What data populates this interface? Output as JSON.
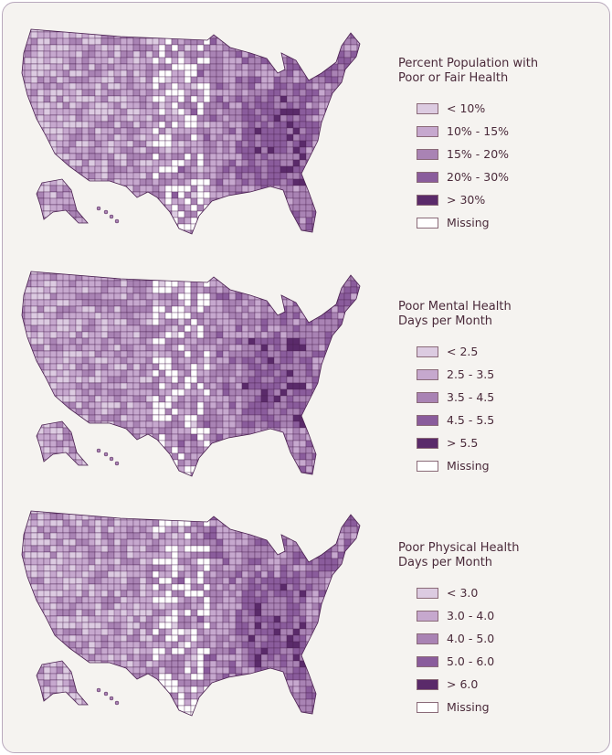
{
  "colors": [
    "#dccbe1",
    "#c6a8ce",
    "#a983b4",
    "#8a5c9c",
    "#5a2a6a",
    "#ffffff"
  ],
  "maps": [
    {
      "title": "Percent Population with Poor or Fair Health",
      "categories": [
        "< 10%",
        "10% - 15%",
        "15% - 20%",
        "20% - 30%",
        "> 30%",
        "Missing"
      ]
    },
    {
      "title": "Poor Mental Health Days per Month",
      "categories": [
        "< 2.5",
        "2.5 - 3.5",
        "3.5 - 4.5",
        "4.5 - 5.5",
        "> 5.5",
        "Missing"
      ]
    },
    {
      "title": "Poor Physical Health Days per Month",
      "categories": [
        "< 3.0",
        "3.0 - 4.0",
        "4.0 - 5.0",
        "5.0 - 6.0",
        "> 6.0",
        "Missing"
      ]
    }
  ]
}
